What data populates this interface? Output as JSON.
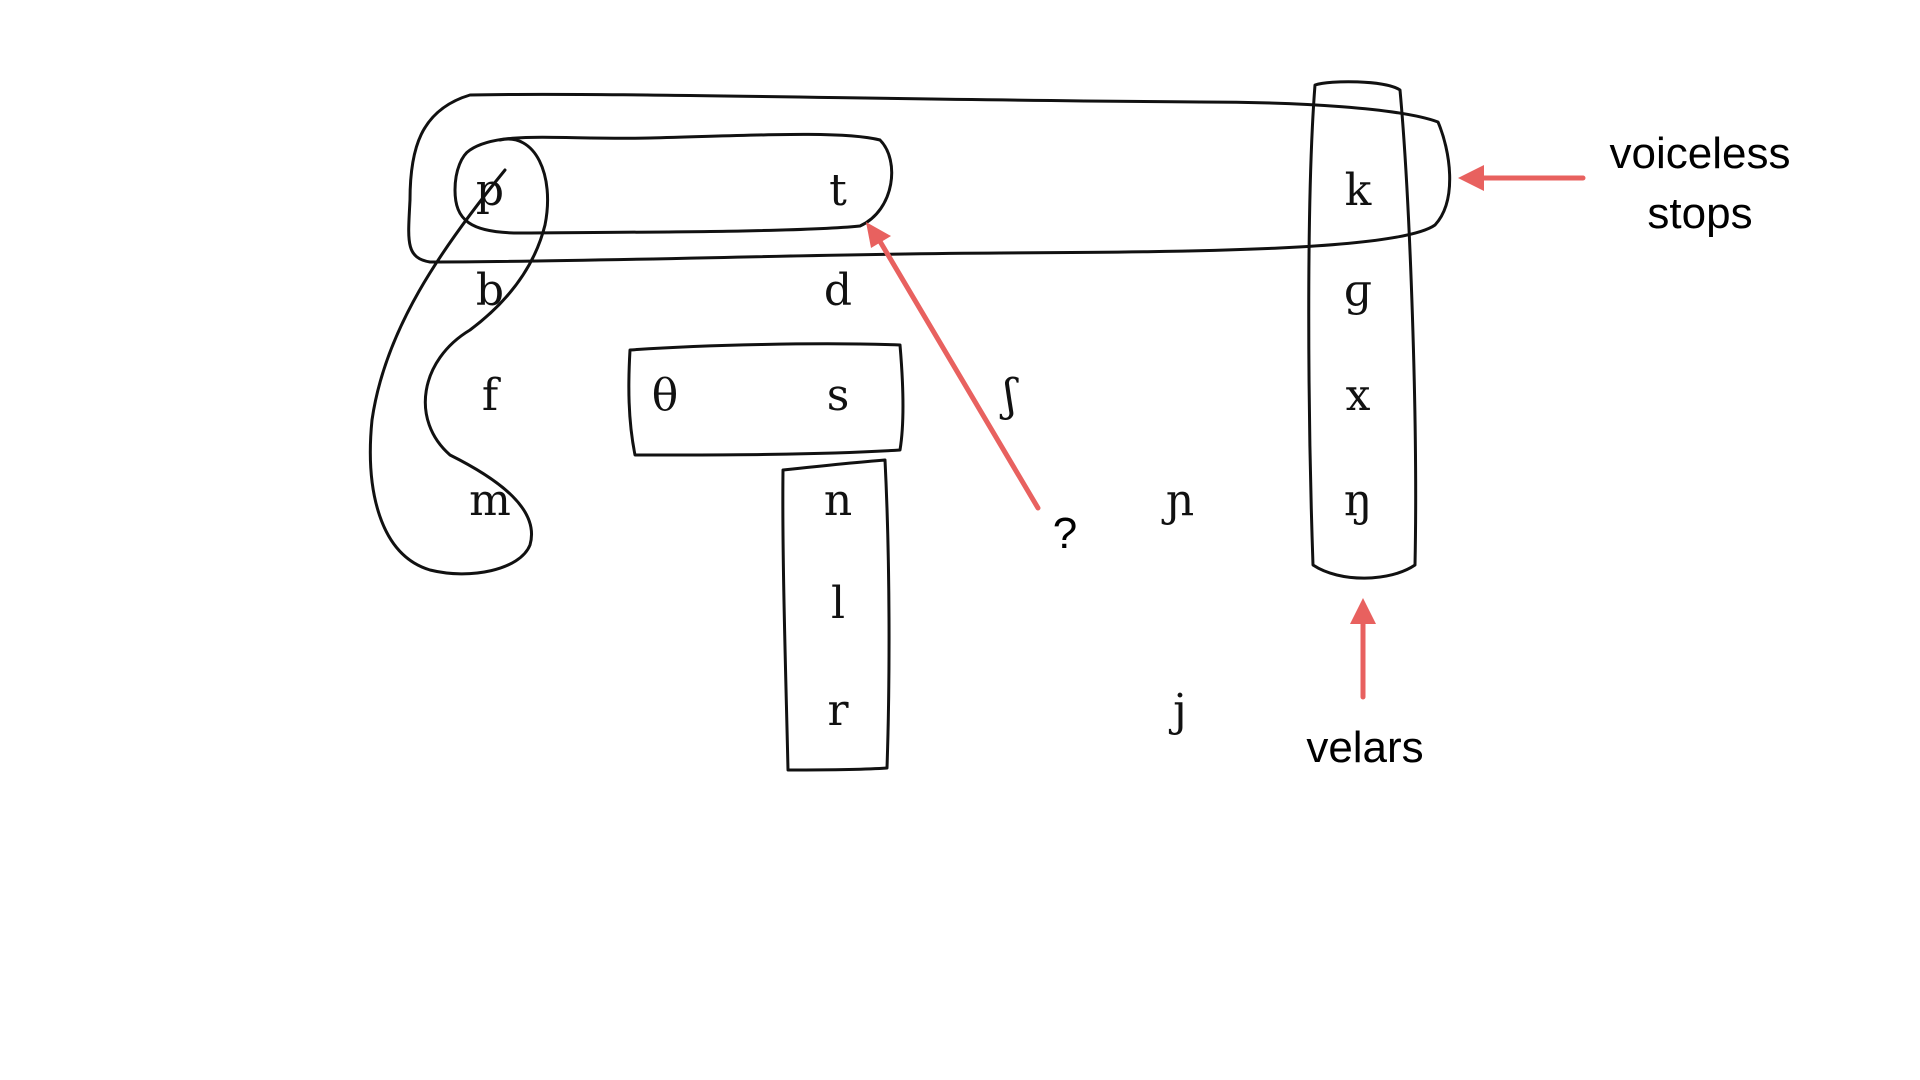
{
  "consonants": {
    "p": "p",
    "t": "t",
    "k": "k",
    "b": "b",
    "d": "d",
    "g": "ɡ",
    "f": "f",
    "theta": "θ",
    "s": "s",
    "esh": "ʃ",
    "x": "x",
    "m": "m",
    "n": "n",
    "palatal_nasal": "ɲ",
    "eng": "ŋ",
    "l": "l",
    "r": "r",
    "j": "j"
  },
  "annotations": {
    "voiceless_stops_line1": "voiceless",
    "voiceless_stops_line2": "stops",
    "velars": "velars",
    "question": "?"
  },
  "colors": {
    "ink": "#111111",
    "arrow": "#e8615f",
    "label": "#000000"
  }
}
